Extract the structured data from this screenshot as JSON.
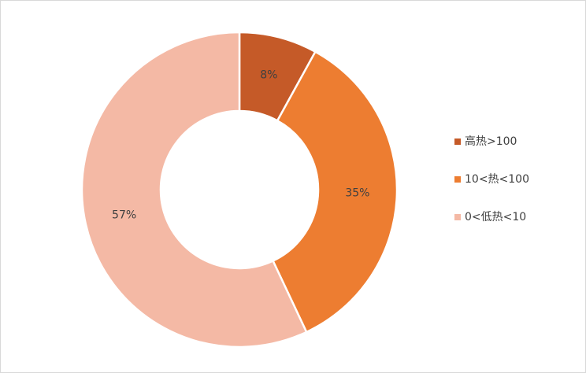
{
  "chart_data": {
    "type": "donut",
    "categories": [
      "高热>100",
      "10<热<100",
      "0<低热<10"
    ],
    "values": [
      8,
      35,
      57
    ],
    "value_labels": [
      "8%",
      "35%",
      "57%"
    ],
    "colors": [
      "#c55a28",
      "#ed7d31",
      "#f4b9a5"
    ],
    "legend": "right"
  }
}
